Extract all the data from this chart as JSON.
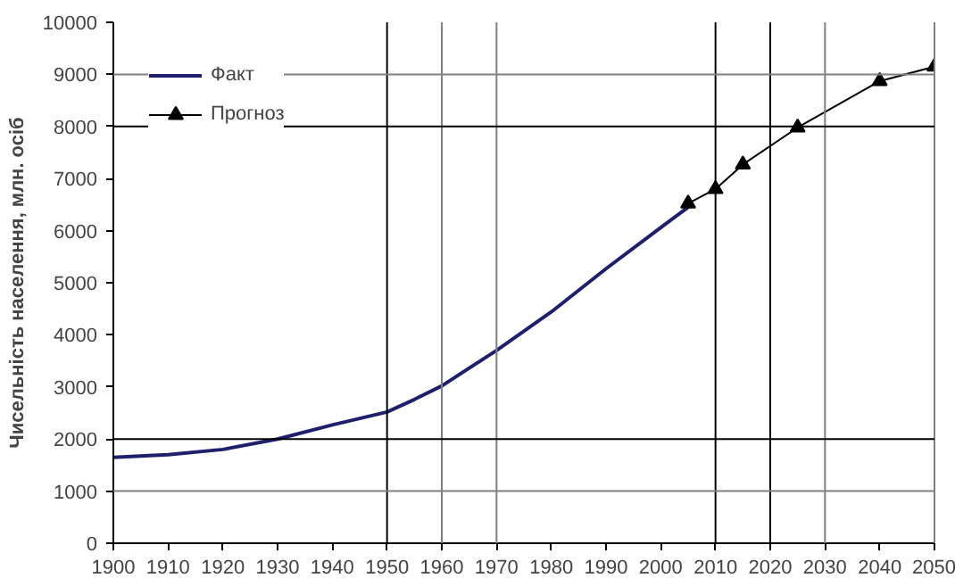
{
  "chart_data": {
    "type": "line",
    "ylabel": "Чисельність населення, млн. осіб",
    "xlim": [
      1900,
      2050
    ],
    "xticks": [
      1900,
      1910,
      1920,
      1930,
      1940,
      1950,
      1960,
      1970,
      1980,
      1990,
      2000,
      2010,
      2020,
      2030,
      2040,
      2050
    ],
    "ylim": [
      0,
      10000
    ],
    "yticks": [
      0,
      1000,
      2000,
      3000,
      4000,
      5000,
      6000,
      7000,
      8000,
      9000,
      10000
    ],
    "grid": false,
    "legend": "top left",
    "series": [
      {
        "name": "Факт",
        "color": "#1f1f6e",
        "marker": "none",
        "x": [
          1900,
          1910,
          1920,
          1930,
          1940,
          1950,
          1955,
          1960,
          1970,
          1980,
          1990,
          2000,
          2005
        ],
        "values": [
          1650,
          1700,
          1800,
          2000,
          2270,
          2520,
          2760,
          3020,
          3700,
          4440,
          5270,
          6060,
          6450
        ]
      },
      {
        "name": "Прогноз",
        "color": "#000000",
        "marker": "triangle",
        "x": [
          2005,
          2010,
          2015,
          2025,
          2040,
          2050
        ],
        "values": [
          6520,
          6800,
          7270,
          7980,
          8870,
          9150
        ]
      }
    ],
    "ref_lines": [
      {
        "axis": "x",
        "value": 1950,
        "color": "#000000"
      },
      {
        "axis": "x",
        "value": 2010,
        "color": "#000000"
      },
      {
        "axis": "x",
        "value": 2020,
        "color": "#000000"
      },
      {
        "axis": "x",
        "value": 1960,
        "color": "#808080"
      },
      {
        "axis": "x",
        "value": 1970,
        "color": "#808080"
      },
      {
        "axis": "x",
        "value": 2030,
        "color": "#808080"
      },
      {
        "axis": "y",
        "value": 2000,
        "color": "#000000"
      },
      {
        "axis": "y",
        "value": 8000,
        "color": "#000000"
      },
      {
        "axis": "y",
        "value": 1000,
        "color": "#808080"
      },
      {
        "axis": "y",
        "value": 9000,
        "color": "#808080"
      }
    ]
  }
}
